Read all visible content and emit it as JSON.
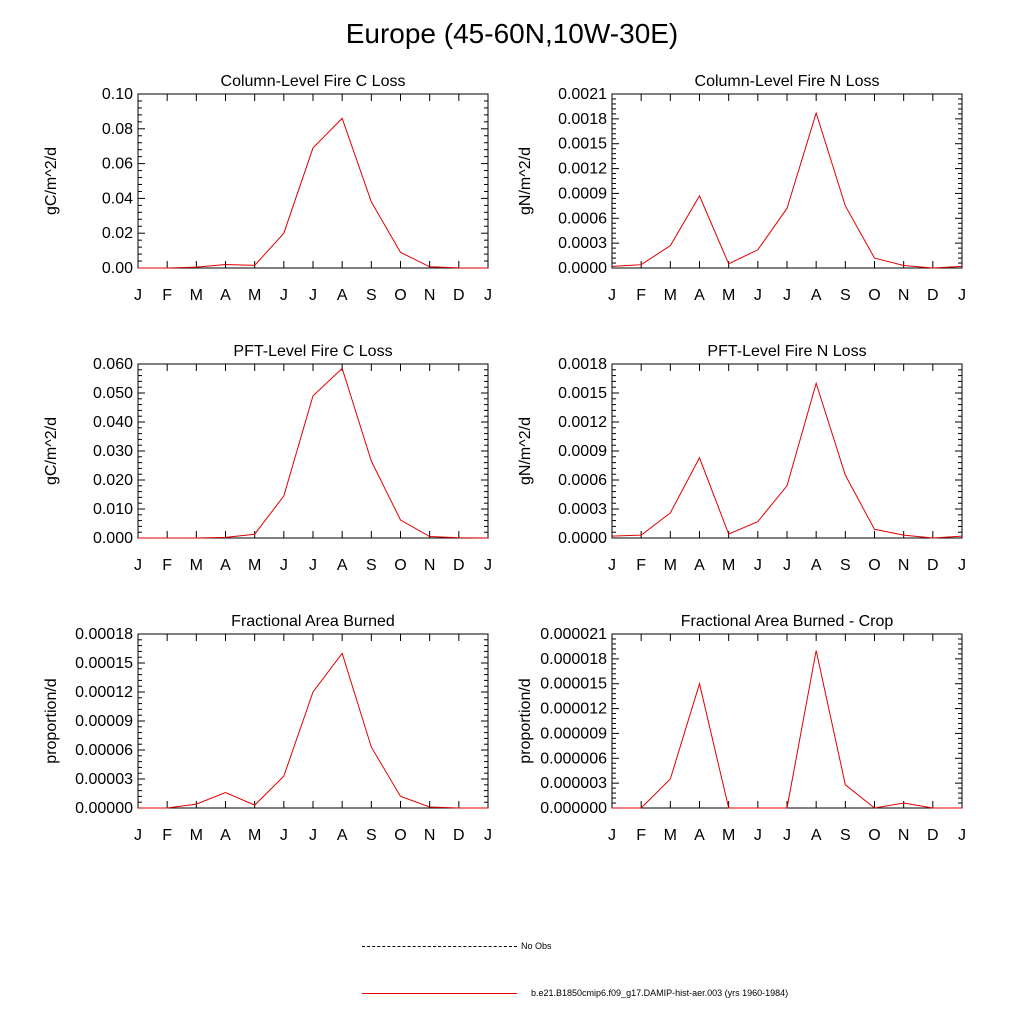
{
  "page": {
    "title": "Europe (45-60N,10W-30E)"
  },
  "months": [
    "J",
    "F",
    "M",
    "A",
    "M",
    "J",
    "J",
    "A",
    "S",
    "O",
    "N",
    "D",
    "J"
  ],
  "series_color": "#e00000",
  "legend": {
    "obs_label": "No Obs",
    "model_label": "b.e21.B1850cmip6.f09_g17.DAMIP-hist-aer.003 (yrs 1960-1984)"
  },
  "chart_data": [
    {
      "type": "line",
      "title": "Column-Level Fire C Loss",
      "ylabel": "gC/m^2/d",
      "ylim": [
        0,
        0.1
      ],
      "yticks": [
        "0.00",
        "0.02",
        "0.04",
        "0.06",
        "0.08",
        "0.10"
      ],
      "x": [
        "J",
        "F",
        "M",
        "A",
        "M",
        "J",
        "J",
        "A",
        "S",
        "O",
        "N",
        "D",
        "J"
      ],
      "series": [
        {
          "values": [
            0.0,
            0.0,
            0.0005,
            0.002,
            0.0015,
            0.02,
            0.069,
            0.086,
            0.038,
            0.009,
            0.0007,
            0.0001,
            0.0
          ]
        }
      ]
    },
    {
      "type": "line",
      "title": "Column-Level Fire N Loss",
      "ylabel": "gN/m^2/d",
      "ylim": [
        0,
        0.0021
      ],
      "yticks": [
        "0.0000",
        "0.0003",
        "0.0006",
        "0.0009",
        "0.0012",
        "0.0015",
        "0.0018",
        "0.0021"
      ],
      "x": [
        "J",
        "F",
        "M",
        "A",
        "M",
        "J",
        "J",
        "A",
        "S",
        "O",
        "N",
        "D",
        "J"
      ],
      "series": [
        {
          "values": [
            2e-05,
            4e-05,
            0.00027,
            0.00087,
            5e-05,
            0.00022,
            0.00072,
            0.00187,
            0.00075,
            0.00012,
            3e-05,
            0.0,
            2e-05
          ]
        }
      ]
    },
    {
      "type": "line",
      "title": "PFT-Level Fire C Loss",
      "ylabel": "gC/m^2/d",
      "ylim": [
        0,
        0.06
      ],
      "yticks": [
        "0.000",
        "0.010",
        "0.020",
        "0.030",
        "0.040",
        "0.050",
        "0.060"
      ],
      "x": [
        "J",
        "F",
        "M",
        "A",
        "M",
        "J",
        "J",
        "A",
        "S",
        "O",
        "N",
        "D",
        "J"
      ],
      "series": [
        {
          "values": [
            0.0,
            0.0,
            0.0,
            0.0002,
            0.0013,
            0.0145,
            0.049,
            0.0585,
            0.0265,
            0.0062,
            0.0005,
            0.0001,
            0.0
          ]
        }
      ]
    },
    {
      "type": "line",
      "title": "PFT-Level Fire N Loss",
      "ylabel": "gN/m^2/d",
      "ylim": [
        0,
        0.0018
      ],
      "yticks": [
        "0.0000",
        "0.0003",
        "0.0006",
        "0.0009",
        "0.0012",
        "0.0015",
        "0.0018"
      ],
      "x": [
        "J",
        "F",
        "M",
        "A",
        "M",
        "J",
        "J",
        "A",
        "S",
        "O",
        "N",
        "D",
        "J"
      ],
      "series": [
        {
          "values": [
            2e-05,
            3e-05,
            0.00026,
            0.00083,
            4e-05,
            0.00017,
            0.00054,
            0.0016,
            0.00065,
            9e-05,
            3e-05,
            0.0,
            2e-05
          ]
        }
      ]
    },
    {
      "type": "line",
      "title": "Fractional Area Burned",
      "ylabel": "proportion/d",
      "ylim": [
        0,
        0.00018
      ],
      "yticks": [
        "0.00000",
        "0.00003",
        "0.00006",
        "0.00009",
        "0.00012",
        "0.00015",
        "0.00018"
      ],
      "x": [
        "J",
        "F",
        "M",
        "A",
        "M",
        "J",
        "J",
        "A",
        "S",
        "O",
        "N",
        "D",
        "J"
      ],
      "series": [
        {
          "values": [
            0.0,
            0.0,
            4e-06,
            1.6e-05,
            3e-06,
            3.3e-05,
            0.00012,
            0.00016,
            6.3e-05,
            1.2e-05,
            1e-06,
            0.0,
            0.0
          ]
        }
      ]
    },
    {
      "type": "line",
      "title": "Fractional Area Burned - Crop",
      "ylabel": "proportion/d",
      "ylim": [
        0,
        2.1e-05
      ],
      "yticks": [
        "0.000000",
        "0.000003",
        "0.000006",
        "0.000009",
        "0.000012",
        "0.000015",
        "0.000018",
        "0.000021"
      ],
      "x": [
        "J",
        "F",
        "M",
        "A",
        "M",
        "J",
        "J",
        "A",
        "S",
        "O",
        "N",
        "D",
        "J"
      ],
      "series": [
        {
          "values": [
            0.0,
            0.0,
            3.5e-06,
            1.5e-05,
            0.0,
            0.0,
            0.0,
            1.9e-05,
            2.8e-06,
            0.0,
            6e-07,
            0.0,
            0.0
          ]
        }
      ]
    }
  ]
}
